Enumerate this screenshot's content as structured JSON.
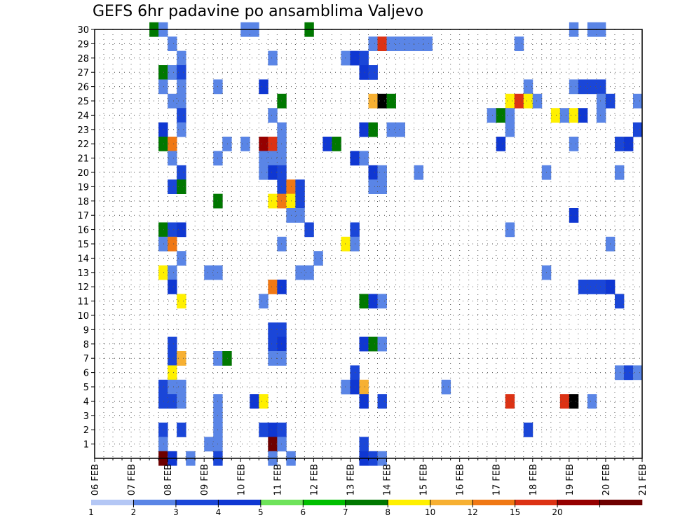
{
  "chart_data": {
    "type": "heatmap",
    "title": "GEFS 6hr padavine po ansamblima Valjevo",
    "xlabel": "",
    "ylabel": "",
    "grid": true,
    "x_tick_labels": [
      "06 FEB",
      "07 FEB",
      "08 FEB",
      "09 FEB",
      "10 FEB",
      "11 FEB",
      "12 FEB",
      "13 FEB",
      "14 FEB",
      "15 FEB",
      "16 FEB",
      "17 FEB",
      "18 FEB",
      "19 FEB",
      "20 FEB",
      "21 FEB"
    ],
    "y_tick_labels": [
      "1",
      "2",
      "3",
      "4",
      "5",
      "6",
      "7",
      "8",
      "9",
      "10",
      "11",
      "12",
      "13",
      "14",
      "15",
      "16",
      "17",
      "18",
      "19",
      "20",
      "21",
      "22",
      "23",
      "24",
      "25",
      "26",
      "27",
      "28",
      "29",
      "30"
    ],
    "x_range_steps": [
      0,
      60
    ],
    "y_range_members": [
      0,
      30
    ],
    "legend": {
      "placement": "bottom",
      "thresholds": [
        "1",
        "2",
        "3",
        "4",
        "5",
        "6",
        "7",
        "8",
        "10",
        "12",
        "15",
        "20"
      ],
      "colors": [
        "#b4c7f5",
        "#5a85e6",
        "#1a46d8",
        "#0f37d2",
        "#6ee35a",
        "#00bf00",
        "#007800",
        "#fff000",
        "#f7b032",
        "#f07814",
        "#dc3214",
        "#960000",
        "#6e0000"
      ]
    },
    "cells": [
      {
        "m": 30,
        "t": 7,
        "c": 6
      },
      {
        "m": 30,
        "t": 8,
        "c": 1
      },
      {
        "m": 30,
        "t": 17,
        "c": 1
      },
      {
        "m": 30,
        "t": 18,
        "c": 1
      },
      {
        "m": 30,
        "t": 24,
        "c": 6
      },
      {
        "m": 30,
        "t": 53,
        "c": 1
      },
      {
        "m": 30,
        "t": 55,
        "c": 1
      },
      {
        "m": 30,
        "t": 56,
        "c": 1
      },
      {
        "m": 29,
        "t": 9,
        "c": 1
      },
      {
        "m": 29,
        "t": 31,
        "c": 1
      },
      {
        "m": 29,
        "t": 32,
        "c": 10
      },
      {
        "m": 29,
        "t": 33,
        "c": 1
      },
      {
        "m": 29,
        "t": 34,
        "c": 1
      },
      {
        "m": 29,
        "t": 35,
        "c": 1
      },
      {
        "m": 29,
        "t": 36,
        "c": 1
      },
      {
        "m": 29,
        "t": 37,
        "c": 1
      },
      {
        "m": 29,
        "t": 47,
        "c": 1
      },
      {
        "m": 28,
        "t": 10,
        "c": 1
      },
      {
        "m": 28,
        "t": 20,
        "c": 1
      },
      {
        "m": 28,
        "t": 28,
        "c": 1
      },
      {
        "m": 28,
        "t": 29,
        "c": 3
      },
      {
        "m": 28,
        "t": 30,
        "c": 2
      },
      {
        "m": 27,
        "t": 8,
        "c": 6
      },
      {
        "m": 27,
        "t": 9,
        "c": 1
      },
      {
        "m": 27,
        "t": 10,
        "c": 2
      },
      {
        "m": 27,
        "t": 30,
        "c": 3
      },
      {
        "m": 27,
        "t": 31,
        "c": 2
      },
      {
        "m": 26,
        "t": 8,
        "c": 1
      },
      {
        "m": 26,
        "t": 10,
        "c": 1
      },
      {
        "m": 26,
        "t": 14,
        "c": 1
      },
      {
        "m": 26,
        "t": 19,
        "c": 3
      },
      {
        "m": 26,
        "t": 48,
        "c": 1
      },
      {
        "m": 26,
        "t": 53,
        "c": 1
      },
      {
        "m": 26,
        "t": 54,
        "c": 2
      },
      {
        "m": 26,
        "t": 55,
        "c": 2
      },
      {
        "m": 26,
        "t": 56,
        "c": 2
      },
      {
        "m": 25,
        "t": 9,
        "c": 1
      },
      {
        "m": 25,
        "t": 10,
        "c": 1
      },
      {
        "m": 25,
        "t": 21,
        "c": 6
      },
      {
        "m": 25,
        "t": 31,
        "c": 8
      },
      {
        "m": 25,
        "t": 32,
        "c": 13
      },
      {
        "m": 25,
        "t": 33,
        "c": 6
      },
      {
        "m": 25,
        "t": 46,
        "c": 7
      },
      {
        "m": 25,
        "t": 47,
        "c": 10
      },
      {
        "m": 25,
        "t": 48,
        "c": 7
      },
      {
        "m": 25,
        "t": 49,
        "c": 1
      },
      {
        "m": 25,
        "t": 56,
        "c": 1
      },
      {
        "m": 25,
        "t": 57,
        "c": 2
      },
      {
        "m": 25,
        "t": 60,
        "c": 1
      },
      {
        "m": 24,
        "t": 10,
        "c": 2
      },
      {
        "m": 24,
        "t": 20,
        "c": 1
      },
      {
        "m": 24,
        "t": 44,
        "c": 1
      },
      {
        "m": 24,
        "t": 45,
        "c": 6
      },
      {
        "m": 24,
        "t": 46,
        "c": 1
      },
      {
        "m": 24,
        "t": 51,
        "c": 7
      },
      {
        "m": 24,
        "t": 52,
        "c": 1
      },
      {
        "m": 24,
        "t": 53,
        "c": 7
      },
      {
        "m": 24,
        "t": 54,
        "c": 3
      },
      {
        "m": 24,
        "t": 56,
        "c": 1
      },
      {
        "m": 23,
        "t": 8,
        "c": 3
      },
      {
        "m": 23,
        "t": 10,
        "c": 1
      },
      {
        "m": 23,
        "t": 21,
        "c": 1
      },
      {
        "m": 23,
        "t": 30,
        "c": 3
      },
      {
        "m": 23,
        "t": 31,
        "c": 6
      },
      {
        "m": 23,
        "t": 33,
        "c": 1
      },
      {
        "m": 23,
        "t": 34,
        "c": 1
      },
      {
        "m": 23,
        "t": 46,
        "c": 1
      },
      {
        "m": 23,
        "t": 60,
        "c": 2
      },
      {
        "m": 22,
        "t": 8,
        "c": 6
      },
      {
        "m": 22,
        "t": 9,
        "c": 9
      },
      {
        "m": 22,
        "t": 15,
        "c": 1
      },
      {
        "m": 22,
        "t": 17,
        "c": 1
      },
      {
        "m": 22,
        "t": 19,
        "c": 11
      },
      {
        "m": 22,
        "t": 20,
        "c": 10
      },
      {
        "m": 22,
        "t": 21,
        "c": 1
      },
      {
        "m": 22,
        "t": 26,
        "c": 3
      },
      {
        "m": 22,
        "t": 27,
        "c": 6
      },
      {
        "m": 22,
        "t": 45,
        "c": 3
      },
      {
        "m": 22,
        "t": 53,
        "c": 1
      },
      {
        "m": 22,
        "t": 58,
        "c": 2
      },
      {
        "m": 22,
        "t": 59,
        "c": 3
      },
      {
        "m": 21,
        "t": 9,
        "c": 1
      },
      {
        "m": 21,
        "t": 14,
        "c": 1
      },
      {
        "m": 21,
        "t": 19,
        "c": 1
      },
      {
        "m": 21,
        "t": 20,
        "c": 1
      },
      {
        "m": 21,
        "t": 21,
        "c": 1
      },
      {
        "m": 21,
        "t": 29,
        "c": 3
      },
      {
        "m": 21,
        "t": 30,
        "c": 1
      },
      {
        "m": 20,
        "t": 10,
        "c": 2
      },
      {
        "m": 20,
        "t": 19,
        "c": 1
      },
      {
        "m": 20,
        "t": 20,
        "c": 3
      },
      {
        "m": 20,
        "t": 21,
        "c": 2
      },
      {
        "m": 20,
        "t": 31,
        "c": 3
      },
      {
        "m": 20,
        "t": 32,
        "c": 1
      },
      {
        "m": 20,
        "t": 36,
        "c": 1
      },
      {
        "m": 20,
        "t": 50,
        "c": 1
      },
      {
        "m": 20,
        "t": 58,
        "c": 1
      },
      {
        "m": 19,
        "t": 9,
        "c": 2
      },
      {
        "m": 19,
        "t": 10,
        "c": 6
      },
      {
        "m": 19,
        "t": 21,
        "c": 2
      },
      {
        "m": 19,
        "t": 22,
        "c": 9
      },
      {
        "m": 19,
        "t": 23,
        "c": 2
      },
      {
        "m": 19,
        "t": 31,
        "c": 1
      },
      {
        "m": 19,
        "t": 32,
        "c": 1
      },
      {
        "m": 18,
        "t": 14,
        "c": 6
      },
      {
        "m": 18,
        "t": 20,
        "c": 7
      },
      {
        "m": 18,
        "t": 21,
        "c": 9
      },
      {
        "m": 18,
        "t": 22,
        "c": 7
      },
      {
        "m": 18,
        "t": 23,
        "c": 2
      },
      {
        "m": 17,
        "t": 22,
        "c": 1
      },
      {
        "m": 17,
        "t": 23,
        "c": 1
      },
      {
        "m": 17,
        "t": 53,
        "c": 3
      },
      {
        "m": 16,
        "t": 8,
        "c": 6
      },
      {
        "m": 16,
        "t": 9,
        "c": 2
      },
      {
        "m": 16,
        "t": 10,
        "c": 3
      },
      {
        "m": 16,
        "t": 24,
        "c": 2
      },
      {
        "m": 16,
        "t": 29,
        "c": 2
      },
      {
        "m": 16,
        "t": 46,
        "c": 1
      },
      {
        "m": 15,
        "t": 8,
        "c": 1
      },
      {
        "m": 15,
        "t": 9,
        "c": 9
      },
      {
        "m": 15,
        "t": 21,
        "c": 1
      },
      {
        "m": 15,
        "t": 28,
        "c": 7
      },
      {
        "m": 15,
        "t": 29,
        "c": 1
      },
      {
        "m": 15,
        "t": 57,
        "c": 1
      },
      {
        "m": 14,
        "t": 10,
        "c": 1
      },
      {
        "m": 14,
        "t": 25,
        "c": 1
      },
      {
        "m": 13,
        "t": 8,
        "c": 7
      },
      {
        "m": 13,
        "t": 9,
        "c": 1
      },
      {
        "m": 13,
        "t": 13,
        "c": 1
      },
      {
        "m": 13,
        "t": 14,
        "c": 1
      },
      {
        "m": 13,
        "t": 23,
        "c": 1
      },
      {
        "m": 13,
        "t": 24,
        "c": 1
      },
      {
        "m": 13,
        "t": 50,
        "c": 1
      },
      {
        "m": 12,
        "t": 9,
        "c": 3
      },
      {
        "m": 12,
        "t": 20,
        "c": 9
      },
      {
        "m": 12,
        "t": 21,
        "c": 3
      },
      {
        "m": 12,
        "t": 54,
        "c": 2
      },
      {
        "m": 12,
        "t": 55,
        "c": 2
      },
      {
        "m": 12,
        "t": 56,
        "c": 2
      },
      {
        "m": 12,
        "t": 57,
        "c": 3
      },
      {
        "m": 11,
        "t": 10,
        "c": 7
      },
      {
        "m": 11,
        "t": 19,
        "c": 1
      },
      {
        "m": 11,
        "t": 30,
        "c": 6
      },
      {
        "m": 11,
        "t": 31,
        "c": 3
      },
      {
        "m": 11,
        "t": 32,
        "c": 1
      },
      {
        "m": 11,
        "t": 58,
        "c": 2
      },
      {
        "m": 9,
        "t": 20,
        "c": 2
      },
      {
        "m": 9,
        "t": 21,
        "c": 2
      },
      {
        "m": 8,
        "t": 9,
        "c": 2
      },
      {
        "m": 8,
        "t": 20,
        "c": 2
      },
      {
        "m": 8,
        "t": 21,
        "c": 3
      },
      {
        "m": 8,
        "t": 30,
        "c": 3
      },
      {
        "m": 8,
        "t": 31,
        "c": 6
      },
      {
        "m": 8,
        "t": 32,
        "c": 1
      },
      {
        "m": 7,
        "t": 9,
        "c": 2
      },
      {
        "m": 7,
        "t": 10,
        "c": 8
      },
      {
        "m": 7,
        "t": 14,
        "c": 1
      },
      {
        "m": 7,
        "t": 15,
        "c": 6
      },
      {
        "m": 7,
        "t": 20,
        "c": 1
      },
      {
        "m": 7,
        "t": 21,
        "c": 1
      },
      {
        "m": 6,
        "t": 9,
        "c": 7
      },
      {
        "m": 6,
        "t": 29,
        "c": 2
      },
      {
        "m": 6,
        "t": 58,
        "c": 1
      },
      {
        "m": 6,
        "t": 59,
        "c": 2
      },
      {
        "m": 6,
        "t": 60,
        "c": 1
      },
      {
        "m": 5,
        "t": 8,
        "c": 2
      },
      {
        "m": 5,
        "t": 9,
        "c": 1
      },
      {
        "m": 5,
        "t": 10,
        "c": 1
      },
      {
        "m": 5,
        "t": 28,
        "c": 1
      },
      {
        "m": 5,
        "t": 29,
        "c": 3
      },
      {
        "m": 5,
        "t": 30,
        "c": 8
      },
      {
        "m": 5,
        "t": 39,
        "c": 1
      },
      {
        "m": 4,
        "t": 8,
        "c": 2
      },
      {
        "m": 4,
        "t": 9,
        "c": 2
      },
      {
        "m": 4,
        "t": 10,
        "c": 1
      },
      {
        "m": 4,
        "t": 14,
        "c": 1
      },
      {
        "m": 4,
        "t": 18,
        "c": 3
      },
      {
        "m": 4,
        "t": 19,
        "c": 7
      },
      {
        "m": 4,
        "t": 30,
        "c": 3
      },
      {
        "m": 4,
        "t": 32,
        "c": 2
      },
      {
        "m": 4,
        "t": 46,
        "c": 10
      },
      {
        "m": 4,
        "t": 52,
        "c": 10
      },
      {
        "m": 4,
        "t": 53,
        "c": 13
      },
      {
        "m": 4,
        "t": 55,
        "c": 1
      },
      {
        "m": 3,
        "t": 14,
        "c": 1
      },
      {
        "m": 2,
        "t": 8,
        "c": 2
      },
      {
        "m": 2,
        "t": 10,
        "c": 2
      },
      {
        "m": 2,
        "t": 14,
        "c": 1
      },
      {
        "m": 2,
        "t": 19,
        "c": 2
      },
      {
        "m": 2,
        "t": 20,
        "c": 3
      },
      {
        "m": 2,
        "t": 21,
        "c": 2
      },
      {
        "m": 2,
        "t": 48,
        "c": 2
      },
      {
        "m": 1,
        "t": 8,
        "c": 1
      },
      {
        "m": 1,
        "t": 13,
        "c": 1
      },
      {
        "m": 1,
        "t": 14,
        "c": 1
      },
      {
        "m": 1,
        "t": 20,
        "c": 12
      },
      {
        "m": 1,
        "t": 21,
        "c": 1
      },
      {
        "m": 1,
        "t": 30,
        "c": 2
      },
      {
        "m": 0,
        "t": 8,
        "c": 12
      },
      {
        "m": 0,
        "t": 9,
        "c": 3
      },
      {
        "m": 0,
        "t": 11,
        "c": 1
      },
      {
        "m": 0,
        "t": 14,
        "c": 2
      },
      {
        "m": 0,
        "t": 20,
        "c": 1
      },
      {
        "m": 0,
        "t": 22,
        "c": 1
      },
      {
        "m": 0,
        "t": 30,
        "c": 3
      },
      {
        "m": 0,
        "t": 31,
        "c": 2
      },
      {
        "m": 0,
        "t": 32,
        "c": 1
      }
    ]
  }
}
